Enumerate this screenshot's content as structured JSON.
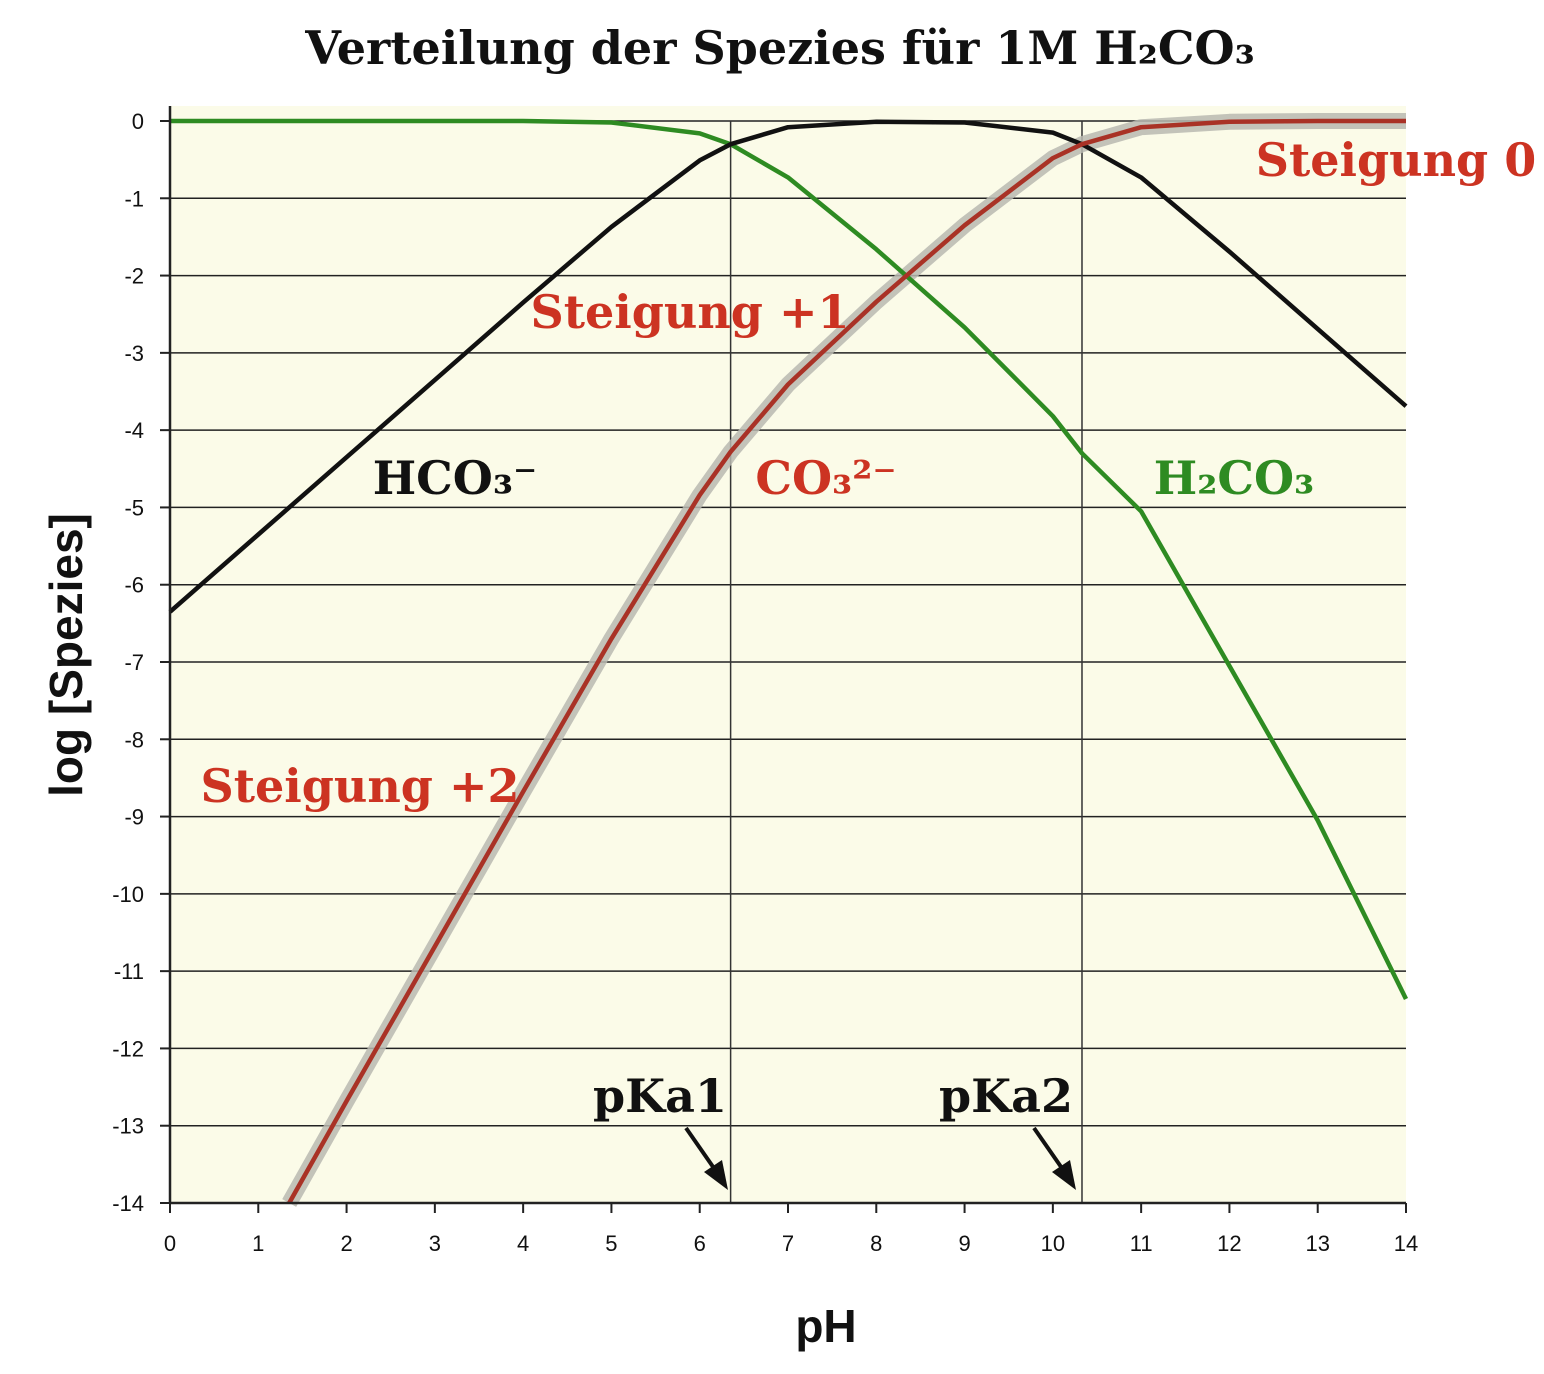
{
  "chart_data": {
    "type": "line",
    "title": "Verteilung der Spezies für 1M H₂CO₃",
    "xlabel": "pH",
    "ylabel": "log [Spezies]",
    "xlim": [
      0,
      14
    ],
    "ylim": [
      -14,
      0
    ],
    "x_ticks": [
      "0",
      "1",
      "2",
      "3",
      "4",
      "5",
      "6",
      "7",
      "8",
      "9",
      "10",
      "11",
      "12",
      "13",
      "14"
    ],
    "y_ticks": [
      "0",
      "-1",
      "-2",
      "-3",
      "-4",
      "-5",
      "-6",
      "-7",
      "-8",
      "-9",
      "-10",
      "-11",
      "-12",
      "-13",
      "-14"
    ],
    "grid": "horizontal",
    "pKa1": 6.35,
    "pKa2": 10.33,
    "series": [
      {
        "name": "H₂CO₃",
        "color": "#2e8b22",
        "x": [
          0,
          1,
          2,
          3,
          4,
          5,
          6,
          6.35,
          7,
          8,
          9,
          10,
          10.33,
          11,
          12,
          13,
          14
        ],
        "y": [
          0,
          0,
          0,
          0,
          0,
          -0.02,
          -0.16,
          -0.3,
          -0.73,
          -1.66,
          -2.67,
          -3.82,
          -4.3,
          -5.05,
          -7.05,
          -9.05,
          -11.36
        ]
      },
      {
        "name": "HCO₃⁻",
        "color": "#111111",
        "x": [
          0,
          1,
          2,
          3,
          4,
          5,
          6,
          6.35,
          7,
          8,
          9,
          10,
          10.33,
          11,
          12,
          13,
          14
        ],
        "y": [
          -6.35,
          -5.35,
          -4.35,
          -3.35,
          -2.35,
          -1.37,
          -0.51,
          -0.3,
          -0.08,
          -0.01,
          -0.02,
          -0.15,
          -0.3,
          -0.73,
          -1.69,
          -2.69,
          -3.69
        ]
      },
      {
        "name": "CO₃²⁻",
        "color": "#a93226",
        "x": [
          1.35,
          2,
          3,
          4,
          5,
          6,
          6.35,
          7,
          8,
          9,
          10,
          10.33,
          11,
          12,
          13,
          14
        ],
        "y": [
          -14,
          -12.68,
          -10.68,
          -8.68,
          -6.7,
          -4.84,
          -4.28,
          -3.41,
          -2.34,
          -1.35,
          -0.48,
          -0.3,
          -0.08,
          -0.01,
          0,
          0
        ]
      }
    ],
    "annotations": {
      "slope0": "Steigung 0",
      "slope1": "Steigung +1",
      "slope2": "Steigung +2",
      "hco3": "HCO₃⁻",
      "co3": "CO₃²⁻",
      "h2co3": "H₂CO₃",
      "pka1": "pKa1",
      "pka2": "pKa2"
    }
  }
}
